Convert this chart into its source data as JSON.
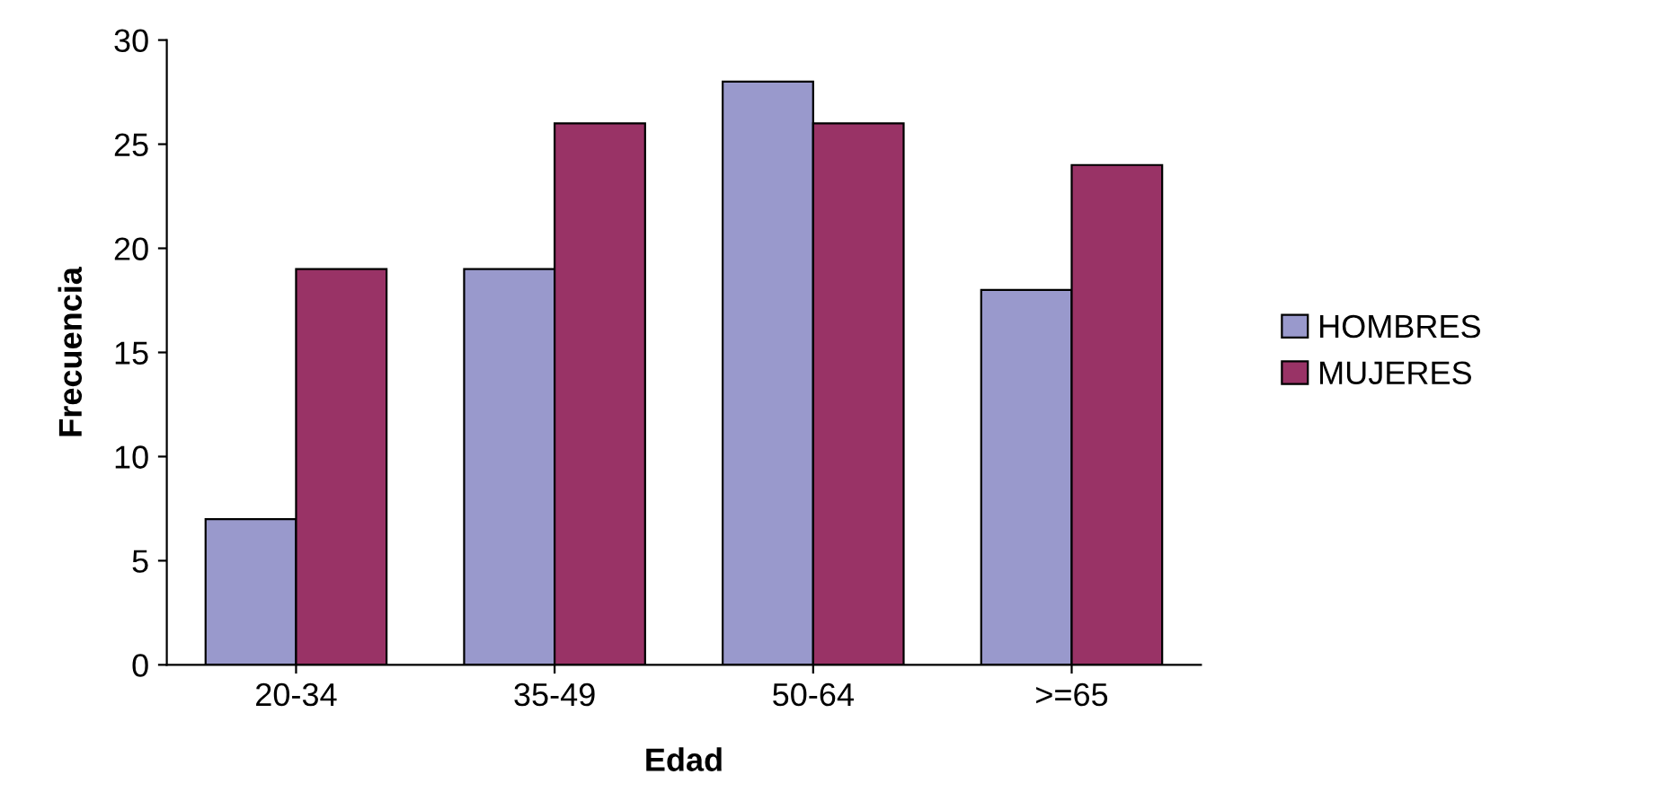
{
  "chart_data": {
    "type": "bar",
    "xlabel": "Edad",
    "ylabel": "Frecuencia",
    "categories": [
      "20-34",
      "35-49",
      "50-64",
      ">=65"
    ],
    "series": [
      {
        "name": "HOMBRES",
        "color": "#9999cc",
        "values": [
          7,
          19,
          28,
          18
        ]
      },
      {
        "name": "MUJERES",
        "color": "#993366",
        "values": [
          19,
          26,
          26,
          24
        ]
      }
    ],
    "ylim": [
      0,
      30
    ],
    "yticks": [
      0,
      5,
      10,
      15,
      20,
      25,
      30
    ],
    "grid": false,
    "legend": "right"
  }
}
